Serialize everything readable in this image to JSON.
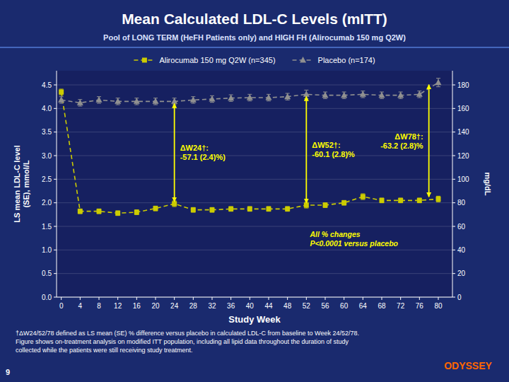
{
  "chart_data": {
    "type": "line",
    "title": "Mean Calculated LDL-C Levels (mITT)",
    "subtitle": "Pool of LONG TERM (HeFH Patients only) and HIGH FH (Alirocumab 150 mg Q2W)",
    "x_label": "Study Week",
    "y_label": "LS mean LDL-C level\n(SE), mmol/L",
    "y2_label": "mg/dL",
    "x": [
      0,
      4,
      8,
      12,
      16,
      20,
      24,
      28,
      32,
      36,
      40,
      44,
      48,
      52,
      56,
      60,
      64,
      68,
      72,
      76,
      80
    ],
    "xlim": [
      -1,
      83
    ],
    "xticks": [
      0,
      4,
      8,
      12,
      16,
      20,
      24,
      28,
      32,
      36,
      40,
      44,
      48,
      52,
      56,
      60,
      64,
      68,
      72,
      76,
      80
    ],
    "ylim": [
      0,
      4.8
    ],
    "yticks": [
      {
        "value": 0,
        "label": "0.0"
      },
      0.5,
      {
        "value": 1,
        "label": "1.0"
      },
      1.5,
      {
        "value": 2,
        "label": "2.0"
      },
      2.5,
      {
        "value": 3,
        "label": "3.0"
      },
      3.5,
      {
        "value": 4,
        "label": "4.0"
      },
      4.5
    ],
    "y2lim": [
      0,
      192
    ],
    "y2ticks": [
      0,
      20,
      40,
      60,
      80,
      100,
      120,
      140,
      160,
      180
    ],
    "grid": true,
    "legend": "top",
    "series": [
      {
        "name": "Alirocumab 150 mg Q2W (n=345)",
        "color": "#cccc00",
        "marker": "square",
        "line_style": "dashed",
        "values": [
          4.35,
          1.82,
          1.82,
          1.78,
          1.8,
          1.88,
          1.98,
          1.85,
          1.85,
          1.87,
          1.87,
          1.87,
          1.87,
          1.95,
          1.95,
          2.0,
          2.13,
          2.05,
          2.05,
          2.05,
          2.08
        ],
        "errors": [
          0.06,
          0.05,
          0.05,
          0.05,
          0.05,
          0.05,
          0.06,
          0.05,
          0.05,
          0.05,
          0.05,
          0.05,
          0.05,
          0.06,
          0.05,
          0.05,
          0.06,
          0.05,
          0.05,
          0.05,
          0.06
        ]
      },
      {
        "name": "Placebo (n=174)",
        "color": "#909090",
        "marker": "triangle",
        "line_style": "dashed",
        "values": [
          4.18,
          4.12,
          4.18,
          4.15,
          4.15,
          4.15,
          4.15,
          4.18,
          4.2,
          4.22,
          4.23,
          4.23,
          4.25,
          4.3,
          4.28,
          4.28,
          4.3,
          4.28,
          4.28,
          4.3,
          4.55
        ],
        "errors": [
          0.07,
          0.07,
          0.07,
          0.07,
          0.07,
          0.07,
          0.07,
          0.07,
          0.07,
          0.07,
          0.07,
          0.07,
          0.07,
          0.09,
          0.07,
          0.07,
          0.07,
          0.07,
          0.07,
          0.07,
          0.09
        ]
      }
    ],
    "annotations": [
      {
        "x": 24,
        "y_top": 4.15,
        "y_bottom": 1.98,
        "text": "ΔW24†:\n-57.1 (2.4)%)",
        "color": "#FFFF00"
      },
      {
        "x": 52,
        "y_top": 4.3,
        "y_bottom": 1.95,
        "text": "ΔW52†:\n-60.1 (2.8)%",
        "color": "#FFFF00"
      },
      {
        "x": 78,
        "y_top": 4.55,
        "y_bottom": 2.08,
        "text": "ΔW78†:\n-63.2 (2.8)%",
        "color": "#FFFF00"
      }
    ],
    "note": "All % changes\nP<0.0001 versus placebo",
    "footnote": "†ΔW24/52/78 defined as LS mean (SE) % difference versus placebo in calculated LDL-C from baseline to Week 24/52/78.\nFigure shows on-treatment analysis on modified ITT population, including all lipid data throughout the duration of study\ncollected while the patients were still receiving study treatment.",
    "slide_number": "9",
    "logo": "ODYSSEY"
  }
}
